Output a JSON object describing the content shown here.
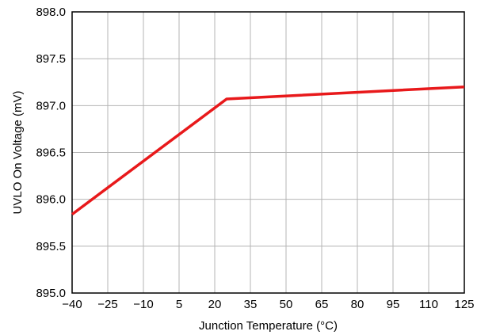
{
  "chart_data": {
    "type": "line",
    "title": "",
    "xlabel": "Junction Temperature (°C)",
    "ylabel": "UVLO On Voltage (mV)",
    "xlim": [
      -40,
      125
    ],
    "ylim": [
      895.0,
      898.0
    ],
    "x_ticks": [
      -40,
      -25,
      -10,
      5,
      20,
      35,
      50,
      65,
      80,
      95,
      110,
      125
    ],
    "x_tick_labels": [
      "−40",
      "−25",
      "−10",
      "5",
      "20",
      "35",
      "50",
      "65",
      "80",
      "95",
      "110",
      "125"
    ],
    "y_ticks": [
      895.0,
      895.5,
      896.0,
      896.5,
      897.0,
      897.5,
      898.0
    ],
    "y_tick_labels": [
      "895.0",
      "895.5",
      "896.0",
      "896.5",
      "897.0",
      "897.5",
      "898.0"
    ],
    "grid": true,
    "series": [
      {
        "color": "#e8191b",
        "x": [
          -40,
          25,
          125
        ],
        "y": [
          895.84,
          897.07,
          897.2
        ]
      }
    ]
  }
}
